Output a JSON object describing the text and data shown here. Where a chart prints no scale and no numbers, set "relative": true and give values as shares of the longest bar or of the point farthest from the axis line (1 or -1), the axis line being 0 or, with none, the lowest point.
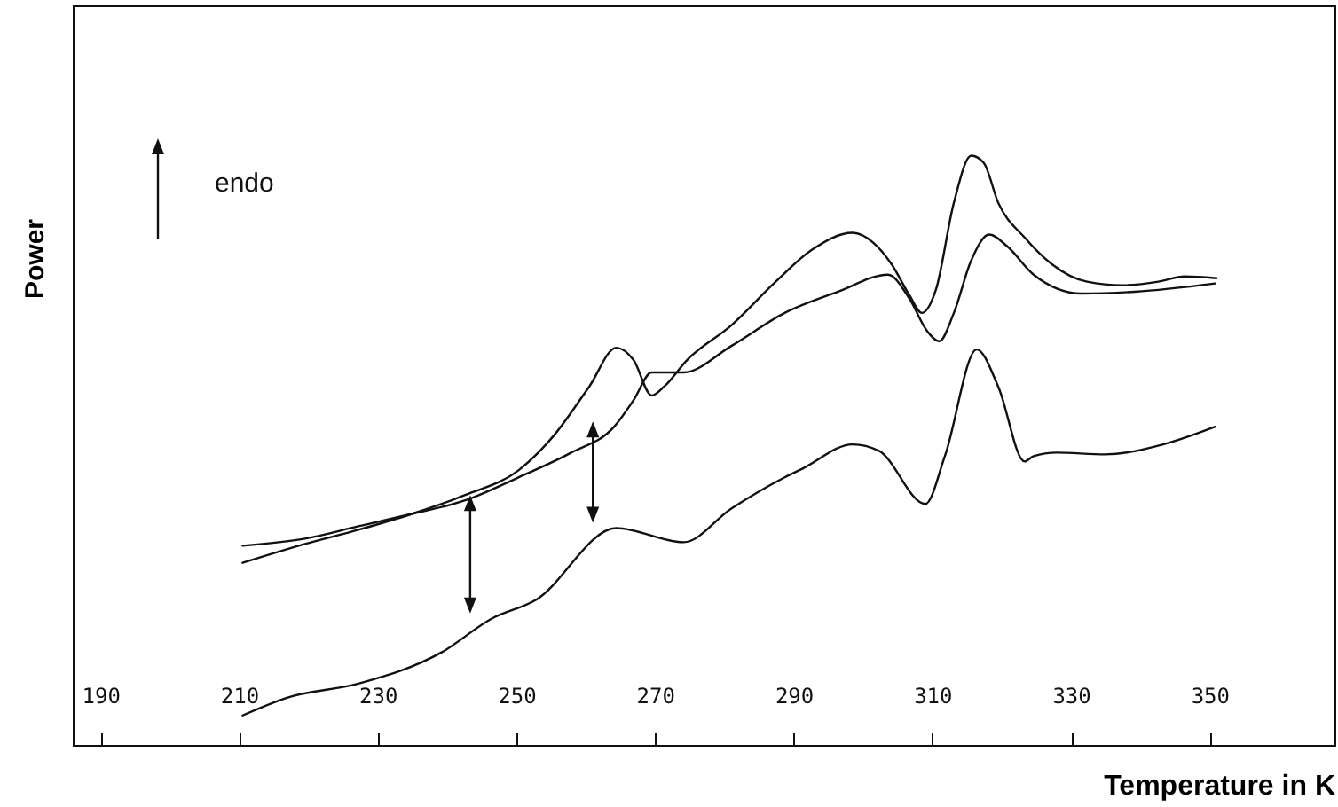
{
  "chart_data": {
    "type": "line",
    "relative": true,
    "xlabel": "Temperature in K",
    "ylabel": "Power",
    "xlim": [
      186,
      368
    ],
    "xticks": [
      190,
      210,
      230,
      250,
      270,
      290,
      310,
      330,
      350
    ],
    "annotations": [
      "endo"
    ],
    "grid": false,
    "marker": "none",
    "line_style": "solid",
    "series": [
      {
        "color": "#111111",
        "x": [
          210.5,
          219.5,
          227.2,
          234.9,
          242.6,
          250.3,
          255.4,
          260.5,
          264.4,
          266.9,
          269.5,
          271.3,
          274.6,
          281.0,
          287.4,
          292.6,
          298.5,
          301.5,
          304.1,
          306.7,
          308.5,
          310.5,
          313.1,
          315.6,
          317.4,
          319.5,
          323.3,
          327.2,
          332.3,
          337.4,
          342.6,
          346.4,
          351.0
        ],
        "values": [
          0.309,
          0.341,
          0.365,
          0.392,
          0.424,
          0.466,
          0.525,
          0.608,
          0.674,
          0.653,
          0.593,
          0.608,
          0.653,
          0.712,
          0.786,
          0.84,
          0.869,
          0.852,
          0.816,
          0.763,
          0.733,
          0.772,
          0.92,
          1.0,
          0.988,
          0.92,
          0.861,
          0.816,
          0.786,
          0.78,
          0.786,
          0.795,
          0.792
        ]
      },
      {
        "color": "#111111",
        "x": [
          210.5,
          219.5,
          227.2,
          234.9,
          242.6,
          250.3,
          257.9,
          264.1,
          266.9,
          269.5,
          274.1,
          281.0,
          288.7,
          296.4,
          303.6,
          306.7,
          309.2,
          311.0,
          313.1,
          315.6,
          318.2,
          320.8,
          324.6,
          331.5,
          339.2,
          350.8
        ],
        "values": [
          0.338,
          0.35,
          0.371,
          0.392,
          0.415,
          0.454,
          0.496,
          0.54,
          0.585,
          0.632,
          0.632,
          0.677,
          0.733,
          0.769,
          0.798,
          0.757,
          0.703,
          0.685,
          0.733,
          0.822,
          0.866,
          0.846,
          0.798,
          0.766,
          0.769,
          0.783
        ]
      },
      {
        "color": "#111111",
        "x": [
          210.5,
          216.9,
          227.2,
          239.2,
          246.4,
          252.8,
          264.4,
          274.1,
          281.0,
          288.7,
          291.3,
          298.5,
          302.3,
          309.0,
          311.8,
          316.4,
          319.5,
          323.3,
          324.6,
          327.9,
          334.9,
          343.3,
          350.8
        ],
        "values": [
          0.05,
          0.08,
          0.104,
          0.157,
          0.214,
          0.246,
          0.368,
          0.344,
          0.401,
          0.454,
          0.469,
          0.51,
          0.499,
          0.409,
          0.49,
          0.671,
          0.608,
          0.481,
          0.49,
          0.496,
          0.493,
          0.51,
          0.54
        ]
      }
    ]
  }
}
